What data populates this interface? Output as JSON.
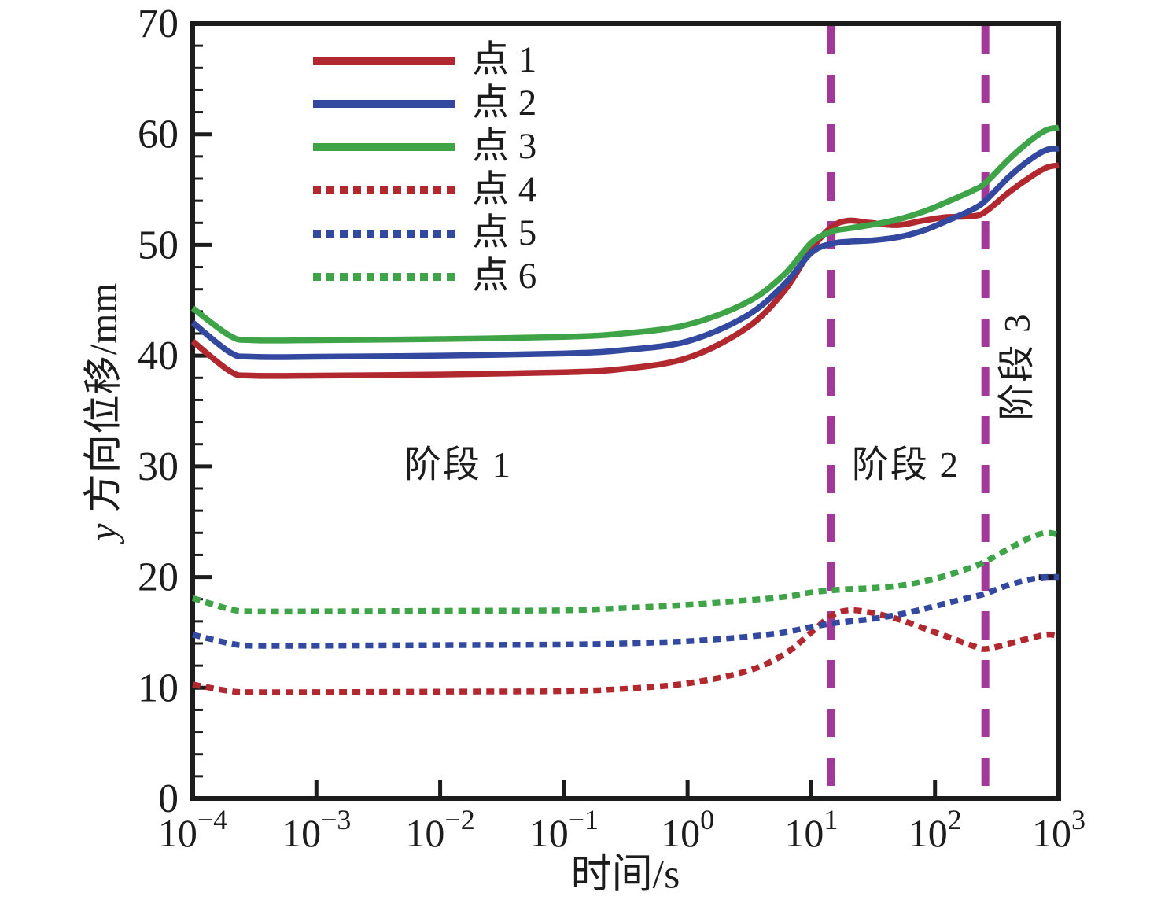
{
  "figure": {
    "background": "#ffffff",
    "text_color": "#1c1c1c"
  },
  "axes": {
    "x": {
      "label": "时间/s",
      "scale": "log",
      "tick_exponents": [
        -4,
        -3,
        -2,
        -1,
        0,
        1,
        2,
        3
      ],
      "tick_base": "10",
      "range_log": [
        -4,
        3
      ]
    },
    "y": {
      "label_italic": "y",
      "label_rest": " 方向位移/mm",
      "ticks": [
        0,
        10,
        20,
        30,
        40,
        50,
        60,
        70
      ],
      "range": [
        0,
        70
      ],
      "minor_step": 2
    }
  },
  "legend": {
    "entries": [
      {
        "label": "点 1",
        "color": "#b1282f",
        "style": "solid"
      },
      {
        "label": "点 2",
        "color": "#32499f",
        "style": "solid"
      },
      {
        "label": "点 3",
        "color": "#3fa447",
        "style": "solid"
      },
      {
        "label": "点 4",
        "color": "#b1282f",
        "style": "dashed"
      },
      {
        "label": "点 5",
        "color": "#32499f",
        "style": "dashed"
      },
      {
        "label": "点 6",
        "color": "#3fa447",
        "style": "dashed"
      }
    ]
  },
  "chart_data": {
    "type": "line",
    "title": "",
    "xlabel": "时间/s",
    "ylabel": "y 方向位移/mm",
    "x_scale": "log",
    "xlim": [
      0.0001,
      1000
    ],
    "ylim": [
      0,
      70
    ],
    "grid": false,
    "legend_position": "upper-left-inside",
    "x": [
      0.0001,
      0.0002,
      0.0003,
      0.001,
      0.01,
      0.1,
      0.3,
      1,
      3,
      6,
      10,
      14.5,
      20,
      30,
      50,
      80,
      120,
      200,
      255,
      400,
      600,
      800,
      1000
    ],
    "series": [
      {
        "name": "点 1",
        "style": "solid",
        "color": "#b1282f",
        "values": [
          41.3,
          38.6,
          38.2,
          38.2,
          38.3,
          38.5,
          38.8,
          39.8,
          42.5,
          45.8,
          49.6,
          51.6,
          52.2,
          52.0,
          51.8,
          52.2,
          52.5,
          52.6,
          53.0,
          54.8,
          56.2,
          57.0,
          57.2
        ]
      },
      {
        "name": "点 2",
        "style": "solid",
        "color": "#32499f",
        "values": [
          43.0,
          40.3,
          39.9,
          39.9,
          40.0,
          40.2,
          40.5,
          41.3,
          43.6,
          46.4,
          49.3,
          50.1,
          50.3,
          50.4,
          50.7,
          51.3,
          52.1,
          53.2,
          54.0,
          56.2,
          57.8,
          58.6,
          58.7
        ]
      },
      {
        "name": "点 3",
        "style": "solid",
        "color": "#3fa447",
        "values": [
          44.3,
          41.8,
          41.4,
          41.4,
          41.5,
          41.7,
          42.0,
          42.8,
          44.8,
          47.3,
          50.2,
          51.2,
          51.5,
          51.8,
          52.3,
          53.0,
          53.8,
          54.9,
          55.6,
          57.8,
          59.5,
          60.4,
          60.6
        ]
      },
      {
        "name": "点 4",
        "style": "dashed",
        "color": "#b1282f",
        "values": [
          10.3,
          9.7,
          9.6,
          9.6,
          9.65,
          9.7,
          9.9,
          10.4,
          11.5,
          13.0,
          15.0,
          16.5,
          17.0,
          16.8,
          16.2,
          15.4,
          14.7,
          13.8,
          13.5,
          14.0,
          14.5,
          14.8,
          14.7
        ]
      },
      {
        "name": "点 5",
        "style": "dashed",
        "color": "#32499f",
        "values": [
          14.8,
          14.0,
          13.8,
          13.8,
          13.85,
          13.9,
          14.0,
          14.2,
          14.6,
          15.0,
          15.5,
          15.8,
          16.0,
          16.2,
          16.6,
          17.1,
          17.6,
          18.2,
          18.5,
          19.3,
          19.8,
          20.0,
          20.0
        ]
      },
      {
        "name": "点 6",
        "style": "dashed",
        "color": "#3fa447",
        "values": [
          18.1,
          17.1,
          16.9,
          16.9,
          16.95,
          17.0,
          17.2,
          17.5,
          17.9,
          18.2,
          18.6,
          18.8,
          18.9,
          19.0,
          19.2,
          19.6,
          20.1,
          20.9,
          21.4,
          22.6,
          23.6,
          24.0,
          23.8
        ]
      }
    ],
    "stage_lines": {
      "color": "#a23897",
      "x_values": [
        14.5,
        255
      ]
    },
    "annotations": [
      {
        "text": "阶段 1",
        "x": 0.014,
        "y": 30.5,
        "rotate": 0
      },
      {
        "text": "阶段 2",
        "x": 58,
        "y": 30.5,
        "rotate": 0
      },
      {
        "text": "阶段 3",
        "x": 430,
        "y": 39.0,
        "rotate": -90
      }
    ],
    "extra_segment": {
      "x1": 690,
      "x2": 1000,
      "y": 20.0,
      "color": "#15152a"
    }
  }
}
